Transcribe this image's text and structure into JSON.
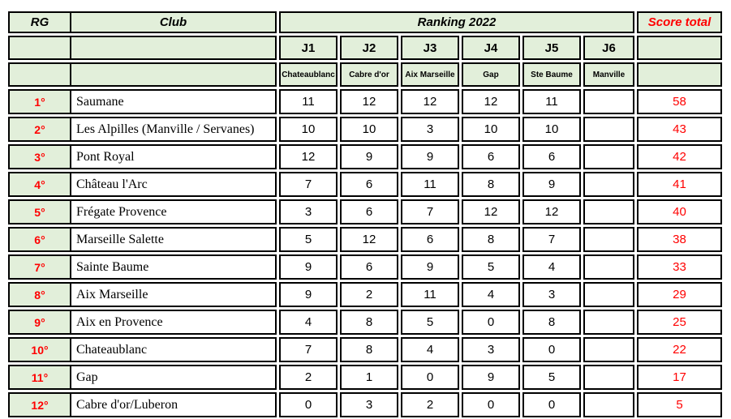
{
  "colors": {
    "header_fill": "#e2efda",
    "accent_red": "#ff0000",
    "border": "#000000"
  },
  "table": {
    "headers": {
      "rg": "RG",
      "club": "Club",
      "ranking": "Ranking 2022",
      "score_total": "Score total"
    },
    "rounds": [
      {
        "label": "J1",
        "venue": "Chateaublanc"
      },
      {
        "label": "J2",
        "venue": "Cabre d'or"
      },
      {
        "label": "J3",
        "venue": "Aix Marseille"
      },
      {
        "label": "J4",
        "venue": "Gap"
      },
      {
        "label": "J5",
        "venue": "Ste Baume"
      },
      {
        "label": "J6",
        "venue": "Manville"
      }
    ],
    "rows": [
      {
        "rank": "1°",
        "club": "Saumane",
        "scores": [
          "11",
          "12",
          "12",
          "12",
          "11",
          ""
        ],
        "total": "58"
      },
      {
        "rank": "2°",
        "club": "Les Alpilles (Manville / Servanes)",
        "scores": [
          "10",
          "10",
          "3",
          "10",
          "10",
          ""
        ],
        "total": "43"
      },
      {
        "rank": "3°",
        "club": "Pont Royal",
        "scores": [
          "12",
          "9",
          "9",
          "6",
          "6",
          ""
        ],
        "total": "42"
      },
      {
        "rank": "4°",
        "club": "Château l'Arc",
        "scores": [
          "7",
          "6",
          "11",
          "8",
          "9",
          ""
        ],
        "total": "41"
      },
      {
        "rank": "5°",
        "club": "Frégate Provence",
        "scores": [
          "3",
          "6",
          "7",
          "12",
          "12",
          ""
        ],
        "total": "40"
      },
      {
        "rank": "6°",
        "club": "Marseille Salette",
        "scores": [
          "5",
          "12",
          "6",
          "8",
          "7",
          ""
        ],
        "total": "38"
      },
      {
        "rank": "7°",
        "club": "Sainte Baume",
        "scores": [
          "9",
          "6",
          "9",
          "5",
          "4",
          ""
        ],
        "total": "33"
      },
      {
        "rank": "8°",
        "club": "Aix Marseille",
        "scores": [
          "9",
          "2",
          "11",
          "4",
          "3",
          ""
        ],
        "total": "29"
      },
      {
        "rank": "9°",
        "club": "Aix en Provence",
        "scores": [
          "4",
          "8",
          "5",
          "0",
          "8",
          ""
        ],
        "total": "25"
      },
      {
        "rank": "10°",
        "club": "Chateaublanc",
        "scores": [
          "7",
          "8",
          "4",
          "3",
          "0",
          ""
        ],
        "total": "22"
      },
      {
        "rank": "11°",
        "club": "Gap",
        "scores": [
          "2",
          "1",
          "0",
          "9",
          "5",
          ""
        ],
        "total": "17"
      },
      {
        "rank": "12°",
        "club": "Cabre d'or/Luberon",
        "scores": [
          "0",
          "3",
          "2",
          "0",
          "0",
          ""
        ],
        "total": "5"
      }
    ]
  }
}
